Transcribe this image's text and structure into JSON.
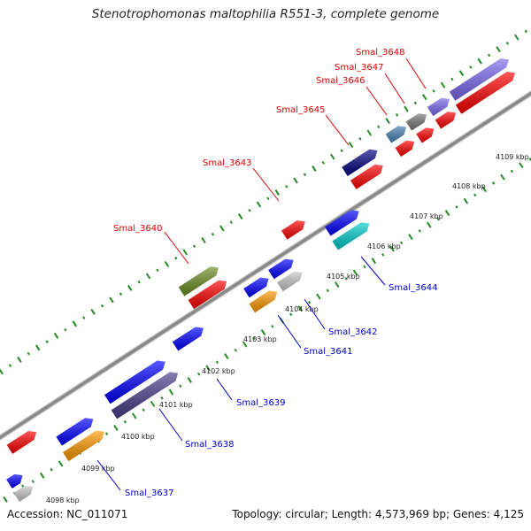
{
  "title": "Stenotrophomonas maltophilia R551-3, complete genome",
  "accession": "Accession: NC_011071",
  "stats": "Topology: circular; Length: 4,573,969 bp; Genes: 4,125",
  "ticks": [
    "4098 kbp",
    "4099 kbp",
    "4100 kbp",
    "4101 kbp",
    "4102 kbp",
    "4103 kbp",
    "4104 kbp",
    "4105 kbp",
    "4106 kbp",
    "4107 kbp",
    "4108 kbp",
    "4109 kbp"
  ],
  "labels_top": [
    "Smal_3640",
    "Smal_3643",
    "Smal_3645",
    "Smal_3646",
    "Smal_3647",
    "Smal_3648"
  ],
  "labels_bottom": [
    "Smal_3637",
    "Smal_3638",
    "Smal_3639",
    "Smal_3641",
    "Smal_3642",
    "Smal_3644"
  ],
  "colors": {
    "red": "#ff0000",
    "blue": "#0000ff",
    "navy": "#000080",
    "olive": "#6b8e23",
    "steel": "#4682b4",
    "gray": "#777777",
    "lightgray": "#c8c8c8",
    "orange": "#ff9900",
    "cyan": "#00cccc",
    "slate": "#483d8b",
    "purple": "#7b68ee",
    "backbone": "#888888",
    "tickgreen": "#228b22",
    "label_red": "#e00000",
    "label_blue": "#0000cc"
  }
}
